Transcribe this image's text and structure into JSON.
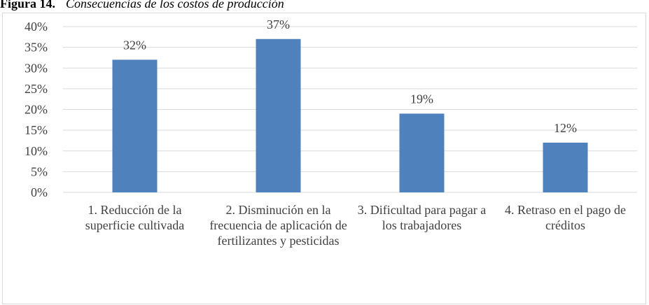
{
  "chart_data": {
    "type": "bar",
    "title_prefix": "Figura 14.",
    "title": "Consecuencias de los costos de producción",
    "categories": [
      "1. Reducción de la superficie cultivada",
      "2. Disminución en la frecuencia de aplicación de fertilizantes y pesticidas",
      "3. Dificultad para pagar a los trabajadores",
      "4. Retraso en el pago de créditos"
    ],
    "values": [
      32,
      37,
      19,
      12
    ],
    "value_labels": [
      "32%",
      "37%",
      "19%",
      "12%"
    ],
    "color": "#4f81bd",
    "ylim": [
      0,
      40
    ],
    "yticks": [
      {
        "value": 0,
        "label": "0%"
      },
      {
        "value": 5,
        "label": "5%"
      },
      {
        "value": 10,
        "label": "10%"
      },
      {
        "value": 15,
        "label": "15%"
      },
      {
        "value": 20,
        "label": "20%"
      },
      {
        "value": 25,
        "label": "25%"
      },
      {
        "value": 30,
        "label": "30%"
      },
      {
        "value": 35,
        "label": "35%"
      },
      {
        "value": 40,
        "label": "40%"
      }
    ],
    "grid": true
  }
}
